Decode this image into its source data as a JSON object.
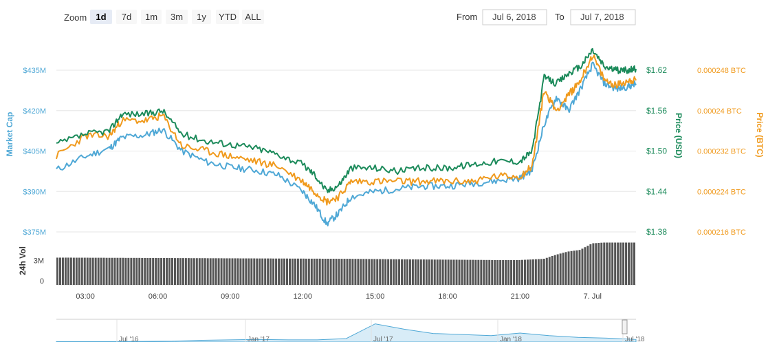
{
  "zoom": {
    "label": "Zoom",
    "buttons": [
      "1d",
      "7d",
      "1m",
      "3m",
      "1y",
      "YTD",
      "ALL"
    ],
    "active": "1d"
  },
  "range": {
    "from_label": "From",
    "from_value": "Jul 6, 2018",
    "to_label": "To",
    "to_value": "Jul 7, 2018"
  },
  "colors": {
    "market_cap": "#4fa8d6",
    "price_usd": "#1b8a5a",
    "price_btc": "#f09a1d",
    "volume": "#555555"
  },
  "chart_data": {
    "type": "line",
    "x_ticks": [
      "03:00",
      "06:00",
      "09:00",
      "12:00",
      "15:00",
      "18:00",
      "21:00",
      "7. Jul"
    ],
    "x_range_hours": [
      1.8,
      25.8
    ],
    "grid": true,
    "y_axes": {
      "market_cap": {
        "title": "Market Cap",
        "ticks": [
          "$375M",
          "$390M",
          "$405M",
          "$420M",
          "$435M"
        ],
        "range": [
          375,
          435
        ],
        "unit": "$M"
      },
      "price_usd": {
        "title": "Price (USD)",
        "ticks": [
          "$1.38",
          "$1.44",
          "$1.50",
          "$1.56",
          "$1.62"
        ],
        "range": [
          1.38,
          1.62
        ]
      },
      "price_btc": {
        "title": "Price (BTC)",
        "ticks": [
          "0.000216 BTC",
          "0.000224 BTC",
          "0.000232 BTC",
          "0.00024 BTC",
          "0.000248 BTC"
        ],
        "range": [
          0.000216,
          0.000248
        ]
      },
      "volume": {
        "title": "24h Vol",
        "ticks": [
          "0",
          "3M"
        ],
        "range": [
          0,
          6
        ]
      }
    },
    "series": [
      {
        "name": "Market Cap",
        "x": [
          1.8,
          3.0,
          4.0,
          4.5,
          5.5,
          6.2,
          7.0,
          8.0,
          9.0,
          10.0,
          11.0,
          12.0,
          12.5,
          13.0,
          13.5,
          14.0,
          15.0,
          16.0,
          17.0,
          18.0,
          19.0,
          20.0,
          21.0,
          21.5,
          22.0,
          22.5,
          23.0,
          23.5,
          24.0,
          24.5,
          25.0,
          25.5,
          25.8
        ],
        "values": [
          398,
          403,
          406,
          410,
          411,
          413,
          405,
          401,
          399,
          398,
          396,
          390,
          385,
          378,
          382,
          388,
          390,
          391,
          392,
          392,
          393,
          394,
          395,
          398,
          415,
          425,
          420,
          428,
          437,
          430,
          428,
          429,
          430
        ]
      },
      {
        "name": "Price (USD)",
        "x": [
          1.8,
          3.0,
          4.0,
          4.5,
          5.5,
          6.2,
          7.0,
          8.0,
          9.0,
          10.0,
          11.0,
          12.0,
          12.5,
          13.0,
          13.5,
          14.0,
          15.0,
          16.0,
          17.0,
          18.0,
          19.0,
          20.0,
          21.0,
          21.5,
          22.0,
          22.5,
          23.0,
          23.5,
          24.0,
          24.5,
          25.0,
          25.5,
          25.8
        ],
        "values": [
          1.51,
          1.525,
          1.53,
          1.555,
          1.555,
          1.56,
          1.525,
          1.515,
          1.51,
          1.505,
          1.495,
          1.48,
          1.465,
          1.44,
          1.45,
          1.475,
          1.475,
          1.47,
          1.475,
          1.475,
          1.48,
          1.485,
          1.485,
          1.5,
          1.61,
          1.6,
          1.615,
          1.625,
          1.65,
          1.625,
          1.62,
          1.62,
          1.622
        ]
      },
      {
        "name": "Price (BTC)",
        "x": [
          1.8,
          3.0,
          4.0,
          4.5,
          5.5,
          6.2,
          7.0,
          8.0,
          9.0,
          10.0,
          11.0,
          12.0,
          12.5,
          13.0,
          13.5,
          14.0,
          15.0,
          16.0,
          17.0,
          18.0,
          19.0,
          20.0,
          21.0,
          21.5,
          22.0,
          22.5,
          23.0,
          23.5,
          24.0,
          24.5,
          25.0,
          25.5,
          25.8
        ],
        "values": [
          0.000231,
          0.000235,
          0.000235,
          0.000238,
          0.000238,
          0.000239,
          0.000233,
          0.000232,
          0.000231,
          0.00023,
          0.000229,
          0.000226,
          0.000224,
          0.000222,
          0.000223,
          0.000226,
          0.000226,
          0.000226,
          0.000226,
          0.000226,
          0.000226,
          0.000227,
          0.000227,
          0.000229,
          0.000244,
          0.00024,
          0.000243,
          0.000246,
          0.000251,
          0.000246,
          0.000245,
          0.000246,
          0.000246
        ]
      },
      {
        "name": "24h Vol",
        "x": [
          1.8,
          6.0,
          10.0,
          14.0,
          18.0,
          20.0,
          21.0,
          22.0,
          22.5,
          23.0,
          23.5,
          24.0,
          24.5,
          25.0,
          25.8
        ],
        "values": [
          3.35,
          3.3,
          3.25,
          3.2,
          3.1,
          3.05,
          3.05,
          3.2,
          3.7,
          4.1,
          4.3,
          5.1,
          5.2,
          5.2,
          5.2
        ]
      }
    ]
  },
  "navigator": {
    "labels": [
      "Jul '16",
      "Jan '17",
      "Jul '17",
      "Jan '18",
      "Jul '18"
    ],
    "values": [
      0.02,
      0.02,
      0.02,
      0.03,
      0.04,
      0.08,
      0.1,
      0.12,
      0.1,
      0.1,
      0.16,
      0.85,
      0.6,
      0.4,
      0.35,
      0.3,
      0.42,
      0.3,
      0.22,
      0.18,
      0.12
    ]
  }
}
